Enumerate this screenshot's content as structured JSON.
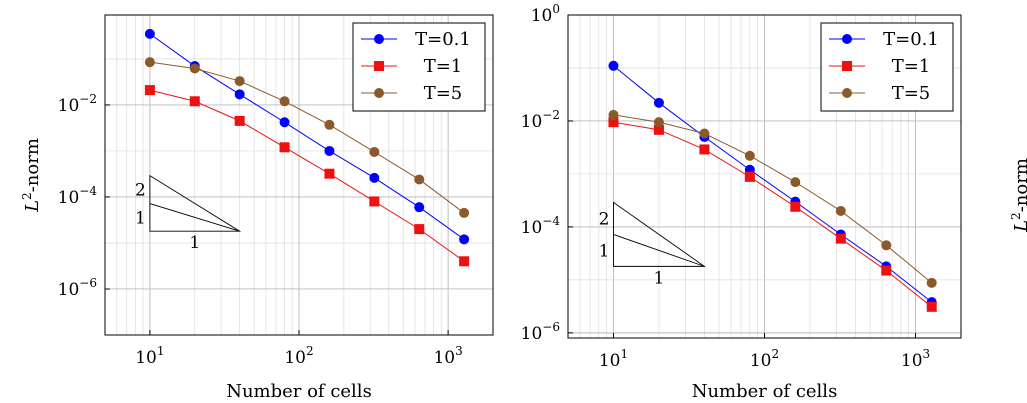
{
  "chart_data": [
    {
      "type": "line",
      "xscale": "log",
      "yscale": "log",
      "xlabel": "Number of cells",
      "ylabel_base": "L",
      "ylabel_sup": "2",
      "ylabel_rest": "-norm",
      "xlim": [
        5,
        2000
      ],
      "ylim": [
        1e-07,
        0.9
      ],
      "x_ticks": [
        {
          "base": "10",
          "exp": "1",
          "value": 10
        },
        {
          "base": "10",
          "exp": "2",
          "value": 100
        },
        {
          "base": "10",
          "exp": "3",
          "value": 1000
        }
      ],
      "y_ticks": [
        {
          "base": "10",
          "exp": "−2",
          "value": 0.01
        },
        {
          "base": "10",
          "exp": "−4",
          "value": 0.0001
        },
        {
          "base": "10",
          "exp": "−6",
          "value": 1e-06
        }
      ],
      "grid": true,
      "legend_position": "top-right",
      "x": [
        10,
        20,
        40,
        80,
        160,
        320,
        640,
        1280
      ],
      "series": [
        {
          "name": "T=0.1",
          "color": "#0000ff",
          "marker": "circle",
          "values": [
            0.35,
            0.07,
            0.017,
            0.0042,
            0.001,
            0.00026,
            6e-05,
            1.2e-05
          ]
        },
        {
          "name": "T=1",
          "color": "#ee1111",
          "marker": "square",
          "values": [
            0.021,
            0.012,
            0.0045,
            0.0012,
            0.00032,
            8e-05,
            2e-05,
            4e-06
          ]
        },
        {
          "name": "T=5",
          "color": "#8b5a2b",
          "marker": "circle",
          "values": [
            0.085,
            0.062,
            0.033,
            0.012,
            0.0037,
            0.00095,
            0.00024,
            4.5e-05
          ]
        }
      ],
      "slope_triangle": {
        "label_top": "2",
        "label_mid": "1",
        "label_bottom": "1",
        "x0": 10,
        "x1": 40,
        "y_base": 1.8e-05,
        "y_top_slope2": 0.00029,
        "y_top_slope1": 7.2e-05
      }
    },
    {
      "type": "line",
      "xscale": "log",
      "yscale": "log",
      "xlabel": "Number of cells",
      "ylabel_base": "",
      "ylabel_sup": "",
      "ylabel_rest": "",
      "xlim": [
        5,
        2000
      ],
      "ylim": [
        8e-07,
        1
      ],
      "x_ticks": [
        {
          "base": "10",
          "exp": "1",
          "value": 10
        },
        {
          "base": "10",
          "exp": "2",
          "value": 100
        },
        {
          "base": "10",
          "exp": "3",
          "value": 1000
        }
      ],
      "y_ticks": [
        {
          "base": "10",
          "exp": "0",
          "value": 1
        },
        {
          "base": "10",
          "exp": "−2",
          "value": 0.01
        },
        {
          "base": "10",
          "exp": "−4",
          "value": 0.0001
        },
        {
          "base": "10",
          "exp": "−6",
          "value": 1e-06
        }
      ],
      "grid": true,
      "legend_position": "top-right",
      "x": [
        10,
        20,
        40,
        80,
        160,
        320,
        640,
        1280
      ],
      "series": [
        {
          "name": "T=0.1",
          "color": "#0000ff",
          "marker": "circle",
          "values": [
            0.11,
            0.022,
            0.005,
            0.0012,
            0.0003,
            7.2e-05,
            1.8e-05,
            3.8e-06
          ]
        },
        {
          "name": "T=1",
          "color": "#ee1111",
          "marker": "square",
          "values": [
            0.0095,
            0.0068,
            0.0029,
            0.00088,
            0.00024,
            6e-05,
            1.5e-05,
            3.1e-06
          ]
        },
        {
          "name": "T=5",
          "color": "#8b5a2b",
          "marker": "circle",
          "values": [
            0.013,
            0.0095,
            0.0058,
            0.0022,
            0.0007,
            0.0002,
            4.5e-05,
            8.8e-06
          ]
        }
      ],
      "slope_triangle": {
        "label_top": "2",
        "label_mid": "1",
        "label_bottom": "1",
        "x0": 10,
        "x1": 40,
        "y_base": 1.8e-05,
        "y_top_slope2": 0.00029,
        "y_top_slope1": 7.2e-05
      }
    }
  ],
  "right_edge_label": {
    "base": "L",
    "sup": "2",
    "rest": "-norm"
  }
}
